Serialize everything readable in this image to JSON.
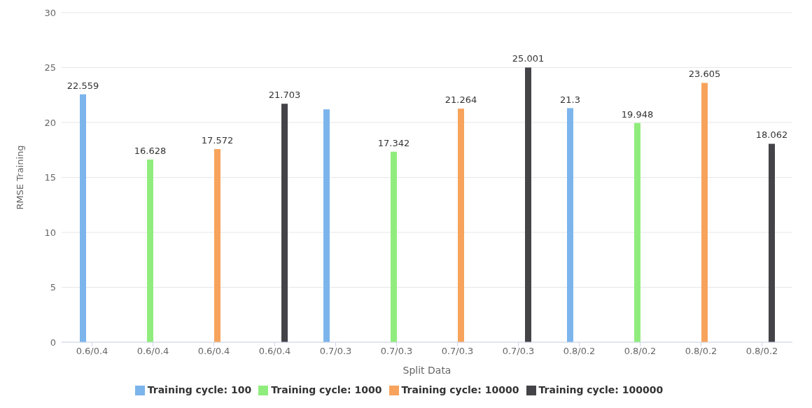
{
  "chart_data": {
    "type": "bar",
    "xlabel": "Split Data",
    "ylabel": "RMSE Training",
    "categories": [
      "0.6/0.4",
      "0.6/0.4",
      "0.6/0.4",
      "0.6/0.4",
      "0.7/0.3",
      "0.7/0.3",
      "0.7/0.3",
      "0.7/0.3",
      "0.8/0.2",
      "0.8/0.2",
      "0.8/0.2",
      "0.8/0.2"
    ],
    "series": [
      {
        "name": "Training cycle: 100",
        "color": "#7cb5ec",
        "values": [
          22.559,
          null,
          null,
          null,
          21.2,
          null,
          null,
          null,
          21.3,
          null,
          null,
          null
        ],
        "value_labels": [
          "22.559",
          null,
          null,
          null,
          null,
          null,
          null,
          null,
          "21.3",
          null,
          null,
          null
        ]
      },
      {
        "name": "Training cycle: 1000",
        "color": "#90ed7d",
        "values": [
          null,
          16.628,
          null,
          null,
          null,
          17.342,
          null,
          null,
          null,
          19.948,
          null,
          null
        ],
        "value_labels": [
          null,
          "16.628",
          null,
          null,
          null,
          "17.342",
          null,
          null,
          null,
          "19.948",
          null,
          null
        ]
      },
      {
        "name": "Training cycle: 10000",
        "color": "#f7a35c",
        "values": [
          null,
          null,
          17.572,
          null,
          null,
          null,
          21.264,
          null,
          null,
          null,
          23.605,
          null
        ],
        "value_labels": [
          null,
          null,
          "17.572",
          null,
          null,
          null,
          "21.264",
          null,
          null,
          null,
          "23.605",
          null
        ]
      },
      {
        "name": "Training cycle: 100000",
        "color": "#434348",
        "values": [
          null,
          null,
          null,
          21.703,
          null,
          null,
          null,
          25.001,
          null,
          null,
          null,
          18.062
        ],
        "value_labels": [
          null,
          null,
          null,
          "21.703",
          null,
          null,
          null,
          "25.001",
          null,
          null,
          null,
          "18.062"
        ]
      }
    ],
    "ylim": [
      0,
      30
    ],
    "yticks": [
      0,
      5,
      10,
      15,
      20,
      25,
      30
    ],
    "grid": "y",
    "legend": "bottom"
  }
}
